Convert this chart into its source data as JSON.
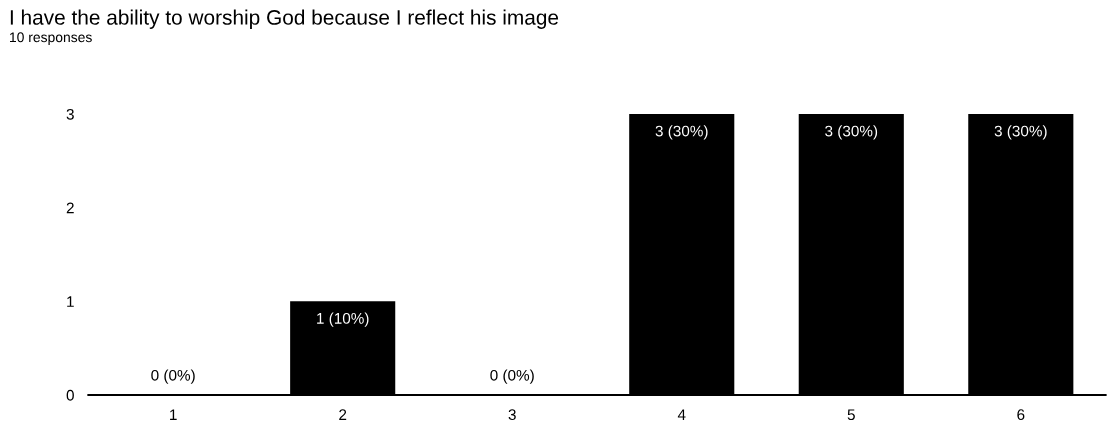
{
  "chart_data": {
    "type": "bar",
    "title": "I have the ability to worship God because I reflect his image",
    "subtitle": "10 responses",
    "categories": [
      "1",
      "2",
      "3",
      "4",
      "5",
      "6"
    ],
    "values": [
      0,
      1,
      0,
      3,
      3,
      3
    ],
    "value_labels": [
      "0 (0%)",
      "1 (10%)",
      "0 (0%)",
      "3 (30%)",
      "3 (30%)",
      "3 (30%)"
    ],
    "color": "#000000",
    "ylim": [
      0,
      3
    ],
    "yticks": [
      0,
      1,
      2,
      3
    ],
    "grid": false,
    "legend": false
  }
}
